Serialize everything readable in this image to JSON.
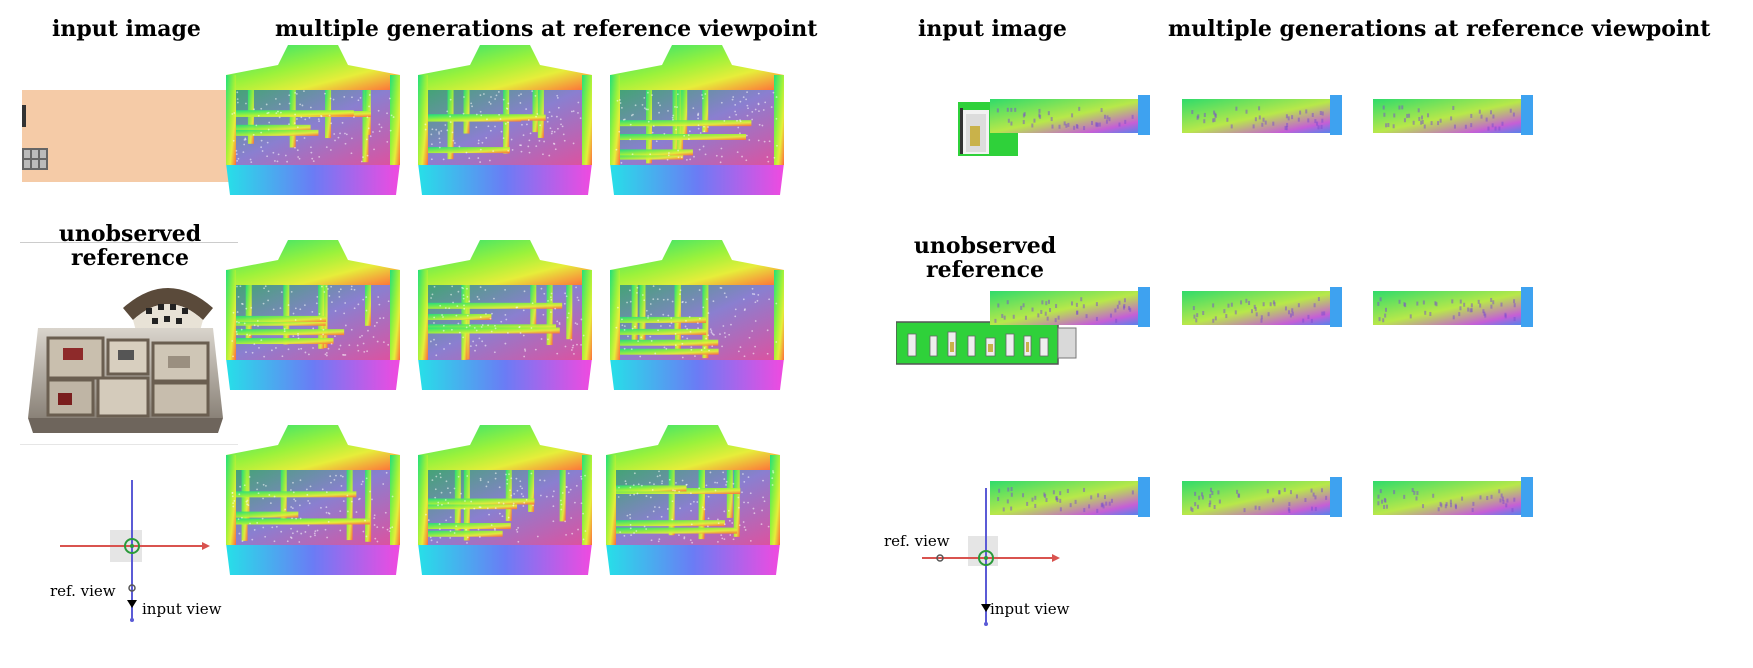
{
  "left_panel": {
    "header_input": "input image",
    "header_generations": "multiple generations at reference viewpoint",
    "label_unobserved": "unobserved reference",
    "diagram_ref_view": "ref. view",
    "diagram_input_view": "input view"
  },
  "right_panel": {
    "header_input": "input image",
    "header_generations": "multiple generations at reference viewpoint",
    "label_unobserved": "unobserved reference",
    "diagram_ref_view": "ref. view",
    "diagram_input_view": "input view"
  },
  "colors": {
    "input_image_fill": "#f5cba7",
    "green_wall": "#2fd13a",
    "axis_red": "#d9534f",
    "axis_blue": "#5b5bd6"
  }
}
